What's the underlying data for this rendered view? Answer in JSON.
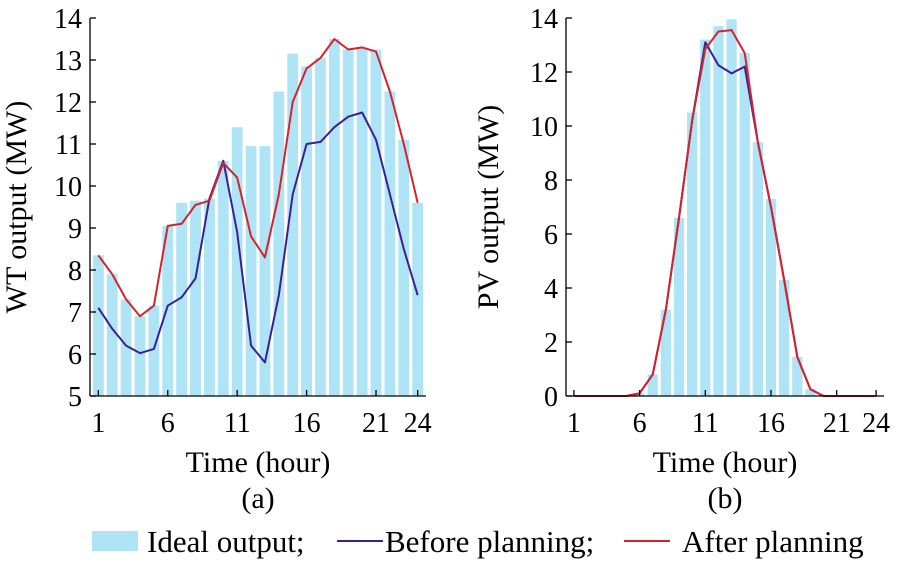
{
  "colors": {
    "ideal": "#aee4f5",
    "before": "#3d1f8f",
    "after": "#d6222c",
    "axis": "#000000"
  },
  "legend": {
    "ideal_label": "Ideal output;",
    "before_label": "Before planning;",
    "after_label": "After planning"
  },
  "chart_data": [
    {
      "type": "bar",
      "panel_label": "(a)",
      "xlabel": "Time (hour)",
      "ylabel": "WT output (MW)",
      "xlim": [
        0.4,
        24.6
      ],
      "ylim": [
        5,
        14
      ],
      "xticks": [
        1,
        6,
        11,
        16,
        21,
        24
      ],
      "yticks": [
        5,
        6,
        7,
        8,
        9,
        10,
        11,
        12,
        13,
        14
      ],
      "x": [
        1,
        2,
        3,
        4,
        5,
        6,
        7,
        8,
        9,
        10,
        11,
        12,
        13,
        14,
        15,
        16,
        17,
        18,
        19,
        20,
        21,
        22,
        23,
        24
      ],
      "series": [
        {
          "name": "Ideal output",
          "type": "bar",
          "values": [
            8.35,
            7.9,
            7.3,
            6.9,
            7.15,
            9.05,
            9.6,
            9.65,
            9.7,
            10.6,
            11.4,
            10.95,
            10.95,
            12.25,
            13.15,
            12.85,
            13.05,
            13.5,
            13.25,
            13.3,
            13.25,
            12.25,
            11.1,
            9.6
          ]
        },
        {
          "name": "Before planning",
          "type": "line",
          "values": [
            7.1,
            6.6,
            6.2,
            6.02,
            6.12,
            7.15,
            7.35,
            7.8,
            9.7,
            10.6,
            8.9,
            6.2,
            5.8,
            7.4,
            9.8,
            11.0,
            11.05,
            11.4,
            11.65,
            11.75,
            11.1,
            9.8,
            8.5,
            7.4
          ]
        },
        {
          "name": "After planning",
          "type": "line",
          "values": [
            8.35,
            7.9,
            7.3,
            6.9,
            7.15,
            9.05,
            9.1,
            9.55,
            9.65,
            10.55,
            10.2,
            8.8,
            8.3,
            9.8,
            12.0,
            12.8,
            13.05,
            13.5,
            13.25,
            13.3,
            13.2,
            12.25,
            11.0,
            9.6
          ]
        }
      ]
    },
    {
      "type": "bar",
      "panel_label": "(b)",
      "xlabel": "Time (hour)",
      "ylabel": "PV output (MW)",
      "xlim": [
        0.4,
        24.6
      ],
      "ylim": [
        0,
        14
      ],
      "xticks": [
        1,
        6,
        11,
        16,
        21,
        24
      ],
      "yticks": [
        0,
        2,
        4,
        6,
        8,
        10,
        12,
        14
      ],
      "x": [
        1,
        2,
        3,
        4,
        5,
        6,
        7,
        8,
        9,
        10,
        11,
        12,
        13,
        14,
        15,
        16,
        17,
        18,
        19,
        20,
        21,
        22,
        23,
        24
      ],
      "series": [
        {
          "name": "Ideal output",
          "type": "bar",
          "values": [
            0,
            0,
            0,
            0,
            0,
            0.1,
            0.8,
            3.2,
            6.6,
            10.5,
            13.2,
            13.7,
            13.95,
            12.7,
            9.4,
            7.3,
            4.3,
            1.45,
            0.25,
            0,
            0,
            0,
            0,
            0
          ]
        },
        {
          "name": "Before planning",
          "type": "line",
          "values": [
            0,
            0,
            0,
            0,
            0,
            0.1,
            0.8,
            3.2,
            6.6,
            10.2,
            13.1,
            12.25,
            11.95,
            12.2,
            9.4,
            7.0,
            4.3,
            1.45,
            0.25,
            0,
            0,
            0,
            0,
            0
          ]
        },
        {
          "name": "After planning",
          "type": "line",
          "values": [
            0,
            0,
            0,
            0,
            0,
            0.1,
            0.8,
            3.2,
            6.6,
            10.2,
            12.85,
            13.5,
            13.55,
            12.7,
            9.4,
            7.0,
            4.3,
            1.45,
            0.25,
            0,
            0,
            0,
            0,
            0
          ]
        }
      ]
    }
  ]
}
